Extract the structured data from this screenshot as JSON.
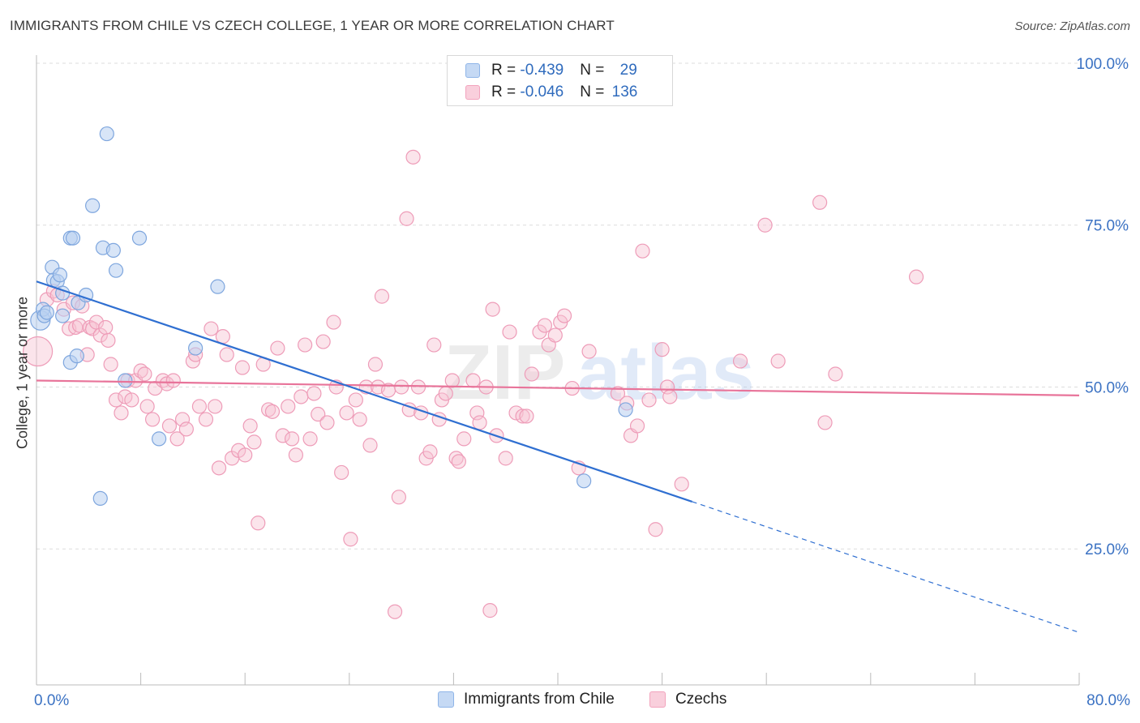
{
  "header": {
    "title": "IMMIGRANTS FROM CHILE VS CZECH COLLEGE, 1 YEAR OR MORE CORRELATION CHART",
    "source": "Source: ZipAtlas.com"
  },
  "legend": {
    "rows": [
      {
        "r_label": "R = ",
        "r_value": "-0.439",
        "n_label": "N = ",
        "n_value": "29"
      },
      {
        "r_label": "R = ",
        "r_value": "-0.046",
        "n_label": "N = ",
        "n_value": "136"
      }
    ]
  },
  "watermark": {
    "zip": "ZIP",
    "atlas": "atlas"
  },
  "chart_data": {
    "type": "scatter",
    "title": "IMMIGRANTS FROM CHILE VS CZECH COLLEGE, 1 YEAR OR MORE CORRELATION CHART",
    "xlabel": "",
    "ylabel": "College, 1 year or more",
    "xlim": [
      0,
      80
    ],
    "ylim": [
      4,
      100
    ],
    "x_tick_labels": [
      "0.0%",
      "80.0%"
    ],
    "y_ticks": [
      25,
      50,
      75,
      100
    ],
    "y_tick_labels": [
      "25.0%",
      "50.0%",
      "75.0%",
      "100.0%"
    ],
    "grid": true,
    "legend_position": "top-center",
    "colors": {
      "chile": "#8fb5e8",
      "chile_line": "#2f6fd1",
      "czech": "#f2a3bd",
      "czech_line": "#e8749a"
    },
    "series": [
      {
        "name": "Immigrants from Chile",
        "trend": {
          "x0": 0,
          "y0": 66.3,
          "x1": 50.3,
          "y1": 32.3,
          "dash_x1": 80,
          "dash_y1": 12.1
        },
        "points": [
          [
            0.3,
            60.3
          ],
          [
            0.5,
            62.0
          ],
          [
            0.6,
            61.0
          ],
          [
            0.8,
            61.5
          ],
          [
            1.2,
            68.5
          ],
          [
            1.3,
            66.5
          ],
          [
            1.6,
            66.3
          ],
          [
            1.8,
            67.3
          ],
          [
            2.0,
            61.0
          ],
          [
            2.0,
            64.5
          ],
          [
            2.6,
            53.8
          ],
          [
            2.6,
            73.0
          ],
          [
            2.8,
            73.0
          ],
          [
            3.1,
            54.8
          ],
          [
            3.2,
            63.0
          ],
          [
            3.8,
            64.2
          ],
          [
            4.3,
            78.0
          ],
          [
            4.9,
            32.8
          ],
          [
            5.1,
            71.5
          ],
          [
            5.4,
            89.1
          ],
          [
            5.9,
            71.1
          ],
          [
            6.1,
            68.0
          ],
          [
            6.8,
            51.0
          ],
          [
            7.9,
            73.0
          ],
          [
            9.4,
            42.0
          ],
          [
            12.2,
            56.0
          ],
          [
            13.9,
            65.5
          ],
          [
            42.0,
            35.5
          ],
          [
            45.2,
            46.5
          ]
        ]
      },
      {
        "name": "Czechs",
        "trend": {
          "x0": 0,
          "y0": 51.0,
          "x1": 80,
          "y1": 48.7
        },
        "points": [
          [
            0.1,
            55.5
          ],
          [
            0.8,
            63.5
          ],
          [
            1.3,
            64.8
          ],
          [
            1.6,
            64.2
          ],
          [
            2.1,
            62.0
          ],
          [
            2.5,
            59.0
          ],
          [
            2.8,
            63.0
          ],
          [
            3.0,
            59.2
          ],
          [
            3.3,
            59.5
          ],
          [
            3.5,
            62.5
          ],
          [
            3.9,
            55.0
          ],
          [
            4.1,
            59.2
          ],
          [
            4.3,
            59.0
          ],
          [
            4.6,
            60.0
          ],
          [
            4.9,
            58.0
          ],
          [
            5.3,
            59.2
          ],
          [
            5.5,
            57.2
          ],
          [
            5.7,
            53.5
          ],
          [
            6.1,
            48.0
          ],
          [
            6.5,
            46.0
          ],
          [
            6.8,
            48.5
          ],
          [
            7.0,
            51.0
          ],
          [
            7.3,
            48.0
          ],
          [
            7.6,
            51.0
          ],
          [
            8.0,
            52.5
          ],
          [
            8.3,
            52.0
          ],
          [
            8.5,
            47.0
          ],
          [
            8.9,
            45.0
          ],
          [
            9.1,
            49.8
          ],
          [
            9.7,
            51.0
          ],
          [
            10.0,
            50.5
          ],
          [
            10.2,
            44.0
          ],
          [
            10.5,
            51.0
          ],
          [
            10.8,
            42.0
          ],
          [
            11.2,
            45.0
          ],
          [
            11.5,
            43.5
          ],
          [
            12.0,
            54.0
          ],
          [
            12.2,
            55.0
          ],
          [
            12.5,
            47.0
          ],
          [
            13.0,
            45.0
          ],
          [
            13.4,
            59.0
          ],
          [
            13.7,
            47.0
          ],
          [
            14.0,
            37.5
          ],
          [
            14.3,
            57.8
          ],
          [
            14.6,
            55.0
          ],
          [
            15.0,
            39.0
          ],
          [
            15.5,
            40.2
          ],
          [
            15.8,
            53.0
          ],
          [
            16.0,
            39.5
          ],
          [
            16.4,
            44.0
          ],
          [
            16.7,
            41.5
          ],
          [
            17.0,
            29.0
          ],
          [
            17.4,
            53.5
          ],
          [
            17.8,
            46.5
          ],
          [
            18.1,
            46.2
          ],
          [
            18.5,
            56.0
          ],
          [
            18.9,
            42.5
          ],
          [
            19.3,
            47.0
          ],
          [
            19.6,
            42.0
          ],
          [
            19.9,
            39.5
          ],
          [
            20.3,
            48.5
          ],
          [
            20.6,
            56.5
          ],
          [
            21.0,
            42.0
          ],
          [
            21.3,
            49.0
          ],
          [
            21.6,
            45.8
          ],
          [
            22.0,
            57.0
          ],
          [
            22.3,
            44.5
          ],
          [
            22.8,
            60.0
          ],
          [
            23.0,
            50.0
          ],
          [
            23.4,
            36.8
          ],
          [
            23.8,
            46.0
          ],
          [
            24.1,
            26.5
          ],
          [
            24.5,
            48.0
          ],
          [
            24.8,
            45.0
          ],
          [
            25.3,
            50.0
          ],
          [
            25.6,
            41.0
          ],
          [
            26.0,
            53.5
          ],
          [
            26.2,
            50.0
          ],
          [
            26.5,
            64.0
          ],
          [
            27.0,
            49.5
          ],
          [
            27.5,
            15.3
          ],
          [
            27.8,
            33.0
          ],
          [
            28.0,
            50.0
          ],
          [
            28.4,
            76.0
          ],
          [
            28.6,
            46.5
          ],
          [
            28.9,
            85.5
          ],
          [
            29.3,
            50.0
          ],
          [
            29.5,
            46.0
          ],
          [
            29.9,
            39.0
          ],
          [
            30.2,
            40.0
          ],
          [
            30.5,
            56.5
          ],
          [
            30.9,
            45.0
          ],
          [
            31.1,
            48.0
          ],
          [
            31.4,
            49.0
          ],
          [
            31.9,
            51.0
          ],
          [
            32.2,
            39.0
          ],
          [
            32.4,
            38.5
          ],
          [
            32.8,
            42.0
          ],
          [
            33.5,
            51.0
          ],
          [
            33.8,
            46.0
          ],
          [
            34.0,
            44.5
          ],
          [
            34.5,
            50.0
          ],
          [
            34.8,
            15.5
          ],
          [
            35.0,
            62.0
          ],
          [
            35.3,
            42.5
          ],
          [
            36.0,
            39.0
          ],
          [
            36.3,
            58.5
          ],
          [
            36.8,
            46.0
          ],
          [
            37.3,
            45.5
          ],
          [
            37.6,
            45.5
          ],
          [
            38.0,
            52.0
          ],
          [
            38.6,
            58.5
          ],
          [
            39.0,
            59.5
          ],
          [
            39.3,
            56.5
          ],
          [
            39.8,
            58.0
          ],
          [
            40.2,
            60.0
          ],
          [
            40.5,
            61.0
          ],
          [
            41.1,
            49.8
          ],
          [
            41.6,
            37.5
          ],
          [
            42.4,
            55.5
          ],
          [
            44.6,
            49.0
          ],
          [
            45.3,
            47.5
          ],
          [
            45.6,
            42.5
          ],
          [
            46.1,
            44.0
          ],
          [
            46.5,
            71.0
          ],
          [
            47.0,
            48.0
          ],
          [
            47.5,
            28.0
          ],
          [
            48.0,
            55.8
          ],
          [
            48.4,
            50.0
          ],
          [
            48.6,
            48.5
          ],
          [
            49.5,
            35.0
          ],
          [
            54.0,
            54.0
          ],
          [
            55.9,
            75.0
          ],
          [
            56.9,
            54.0
          ],
          [
            60.1,
            78.5
          ],
          [
            60.5,
            44.5
          ],
          [
            61.3,
            52.0
          ],
          [
            67.5,
            67.0
          ]
        ]
      }
    ]
  },
  "bottom_legend": {
    "items": [
      {
        "label": "Immigrants from Chile"
      },
      {
        "label": "Czechs"
      }
    ]
  }
}
